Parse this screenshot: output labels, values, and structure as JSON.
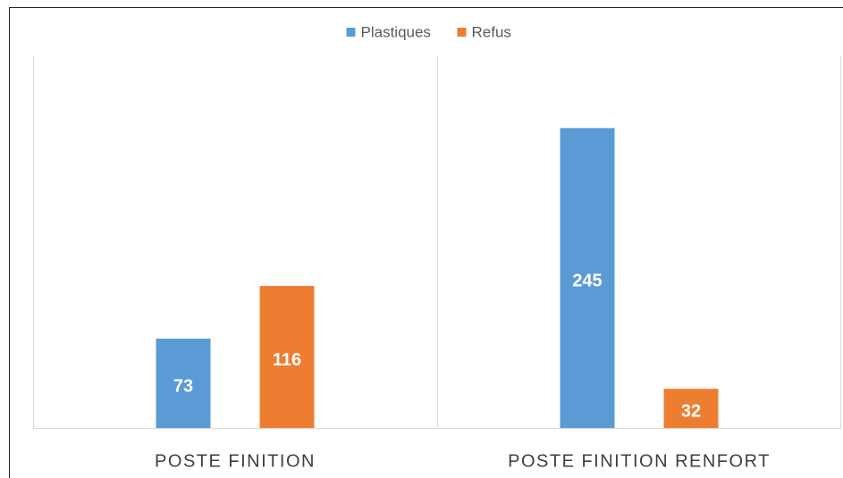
{
  "chart_data": {
    "type": "bar",
    "categories": [
      "POSTE FINITION",
      "POSTE FINITION RENFORT"
    ],
    "series": [
      {
        "name": "Plastiques",
        "color": "#5b9bd5",
        "values": [
          73,
          245
        ]
      },
      {
        "name": "Refus",
        "color": "#ed7d31",
        "values": [
          116,
          32
        ]
      }
    ],
    "ylim": [
      0,
      300
    ],
    "legend": "top"
  }
}
